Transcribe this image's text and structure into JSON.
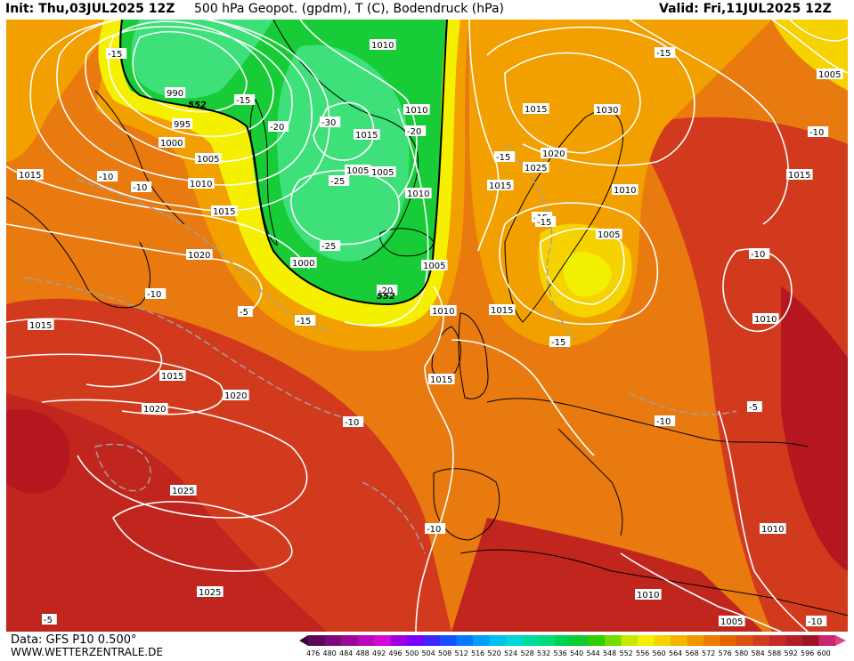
{
  "header": {
    "init": "Init: Thu,03JUL2025 12Z",
    "title": "500 hPa Geopot. (gpdm), T (C), Bodendruck (hPa)",
    "valid": "Valid: Fri,11JUL2025 12Z"
  },
  "footer": {
    "data_source": "Data: GFS P10 0.500°",
    "website": "WWW.WETTERZENTRALE.DE"
  },
  "colors": {
    "green_low": "#18cc38",
    "green_mid": "#3ee07a",
    "yellow": "#f5f000",
    "orange": "#f2a000",
    "orange_red": "#e87a10",
    "red": "#d23a1e",
    "dark_red": "#b4181e",
    "isobar": "#ffffff",
    "coast": "#000000"
  },
  "legend": {
    "values": [
      "476",
      "480",
      "484",
      "488",
      "492",
      "496",
      "500",
      "504",
      "508",
      "512",
      "516",
      "520",
      "524",
      "528",
      "532",
      "536",
      "540",
      "544",
      "548",
      "552",
      "556",
      "560",
      "564",
      "568",
      "572",
      "576",
      "580",
      "584",
      "588",
      "592",
      "596",
      "600"
    ],
    "colors": [
      "#5a0a5a",
      "#7a0a7a",
      "#9a0a9a",
      "#b80ab8",
      "#d40ad4",
      "#a000e0",
      "#7800ff",
      "#3c28ff",
      "#1450ff",
      "#0a78ff",
      "#00a0ff",
      "#00c0f0",
      "#00d8d8",
      "#00dca0",
      "#00dc78",
      "#00d050",
      "#10cc30",
      "#30d000",
      "#70dc00",
      "#c8e800",
      "#f0f000",
      "#f5d200",
      "#f5b400",
      "#f29600",
      "#ee7d00",
      "#e66400",
      "#dc5014",
      "#d23c1e",
      "#c82828",
      "#b41e28",
      "#a01428",
      "#c8286e"
    ]
  },
  "labels": {
    "pressure": [
      "1010",
      "990",
      "995",
      "1000",
      "1005",
      "1010",
      "1015",
      "1015",
      "1020",
      "1015",
      "1015",
      "1020",
      "1025",
      "1025",
      "1015",
      "1015",
      "1020",
      "1010",
      "1005",
      "1015",
      "1010",
      "1015",
      "1010",
      "1030",
      "1005",
      "1000",
      "1010",
      "1005",
      "1010",
      "1015",
      "1005",
      "1010",
      "1005",
      "1010",
      "1015",
      "1025",
      "1020",
      "1005"
    ],
    "temperature": [
      "-15",
      "-15",
      "-20",
      "-30",
      "-20",
      "-25",
      "-25",
      "-20",
      "-10",
      "-10",
      "-10",
      "-15",
      "-15",
      "-15",
      "-15",
      "-15",
      "-10",
      "-10",
      "-10",
      "-10",
      "-5",
      "-10",
      "-5",
      "-15",
      "-10",
      "-5"
    ],
    "geopotential": [
      "552",
      "552"
    ]
  }
}
